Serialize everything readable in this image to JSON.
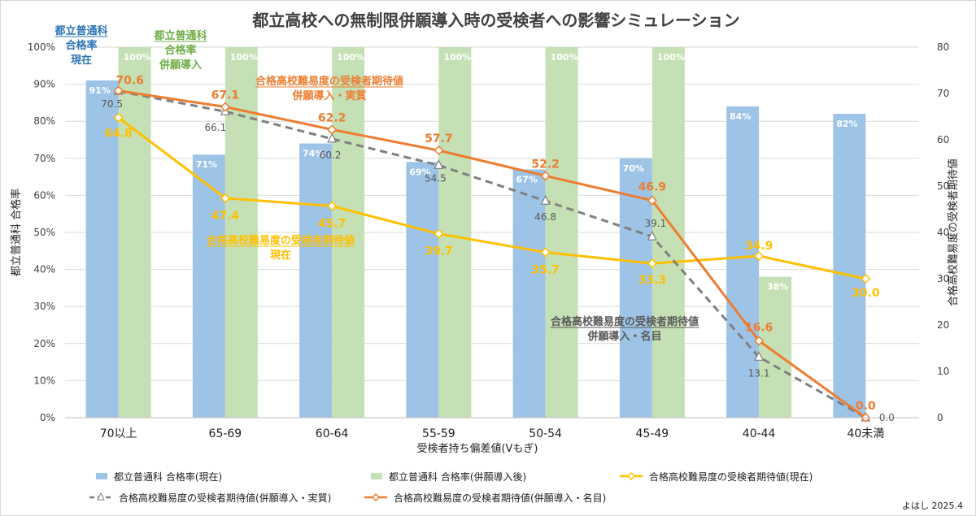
{
  "chart_data": {
    "type": "bar+line",
    "title": "都立高校への無制限併願導入時の受検者への影響シミュレーション",
    "xlabel": "受検者持ち偏差値(Vもぎ)",
    "ylabel_left": "都立普通科 合格率",
    "ylabel_right": "合格高校難易度の受検者期待値",
    "ylim_left": [
      0,
      100
    ],
    "ylim_right": [
      0,
      80
    ],
    "left_ticks": [
      "0%",
      "10%",
      "20%",
      "30%",
      "40%",
      "50%",
      "60%",
      "70%",
      "80%",
      "90%",
      "100%"
    ],
    "right_ticks": [
      "0",
      "10",
      "20",
      "30",
      "40",
      "50",
      "60",
      "70",
      "80"
    ],
    "categories": [
      "70以上",
      "65-69",
      "60-64",
      "55-59",
      "50-54",
      "45-49",
      "40-44",
      "40未満"
    ],
    "bar_series": [
      {
        "name": "都立普通科 合格率(現在)",
        "color": "#9DC3E6",
        "values": [
          91,
          71,
          74,
          69,
          67,
          70,
          84,
          82
        ],
        "labels": [
          "91%",
          "71%",
          "74%",
          "69%",
          "67%",
          "70%",
          "84%",
          "82%"
        ]
      },
      {
        "name": "都立普通科 合格率(併願導入後)",
        "color": "#C5E0B4",
        "values": [
          100,
          100,
          100,
          100,
          100,
          100,
          38,
          null
        ],
        "labels": [
          "100%",
          "100%",
          "100%",
          "100%",
          "100%",
          "100%",
          "38%",
          ""
        ]
      }
    ],
    "line_series": [
      {
        "name": "合格高校難易度の受検者期待値(現在)",
        "color": "#FFC000",
        "dash": false,
        "values": [
          64.8,
          47.4,
          45.7,
          39.7,
          35.7,
          33.3,
          34.9,
          30.0
        ],
        "labels": [
          "64.8",
          "47.4",
          "45.7",
          "39.7",
          "35.7",
          "33.3",
          "34.9",
          "30.0"
        ]
      },
      {
        "name": "合格高校難易度の受検者期待値(併願導入・実質)",
        "color": "#808080",
        "dash": true,
        "values": [
          70.5,
          66.1,
          60.2,
          54.5,
          46.8,
          39.1,
          13.1,
          0.0
        ],
        "labels": [
          "70.5",
          "66.1",
          "60.2",
          "54.5",
          "46.8",
          "39.1",
          "13.1",
          "0.0"
        ]
      },
      {
        "name": "合格高校難易度の受検者期待値(併願導入・名目)",
        "color": "#ED7D31",
        "dash": false,
        "values": [
          70.6,
          67.1,
          62.2,
          57.7,
          52.2,
          46.9,
          16.6,
          0.0
        ],
        "labels": [
          "70.6",
          "67.1",
          "62.2",
          "57.7",
          "52.2",
          "46.9",
          "16.6",
          "0.0"
        ]
      }
    ],
    "annotations": [
      {
        "lines": [
          "都立普通科",
          "合格率",
          "現在"
        ],
        "color": "#2E75B6"
      },
      {
        "lines": [
          "都立普通科",
          "合格率",
          "併願導入"
        ],
        "color": "#70AD47"
      },
      {
        "lines": [
          "合格高校難易度の受検者期待値",
          "併願導入・実質"
        ],
        "color": "#ED7D31"
      },
      {
        "lines": [
          "合格高校難易度の受検者期待値",
          "現在"
        ],
        "color": "#FFC000"
      },
      {
        "lines": [
          "合格高校難易度の受検者期待値",
          "併願導入・名目"
        ],
        "color": "#595959"
      }
    ],
    "credit": "よはし 2025.4"
  }
}
